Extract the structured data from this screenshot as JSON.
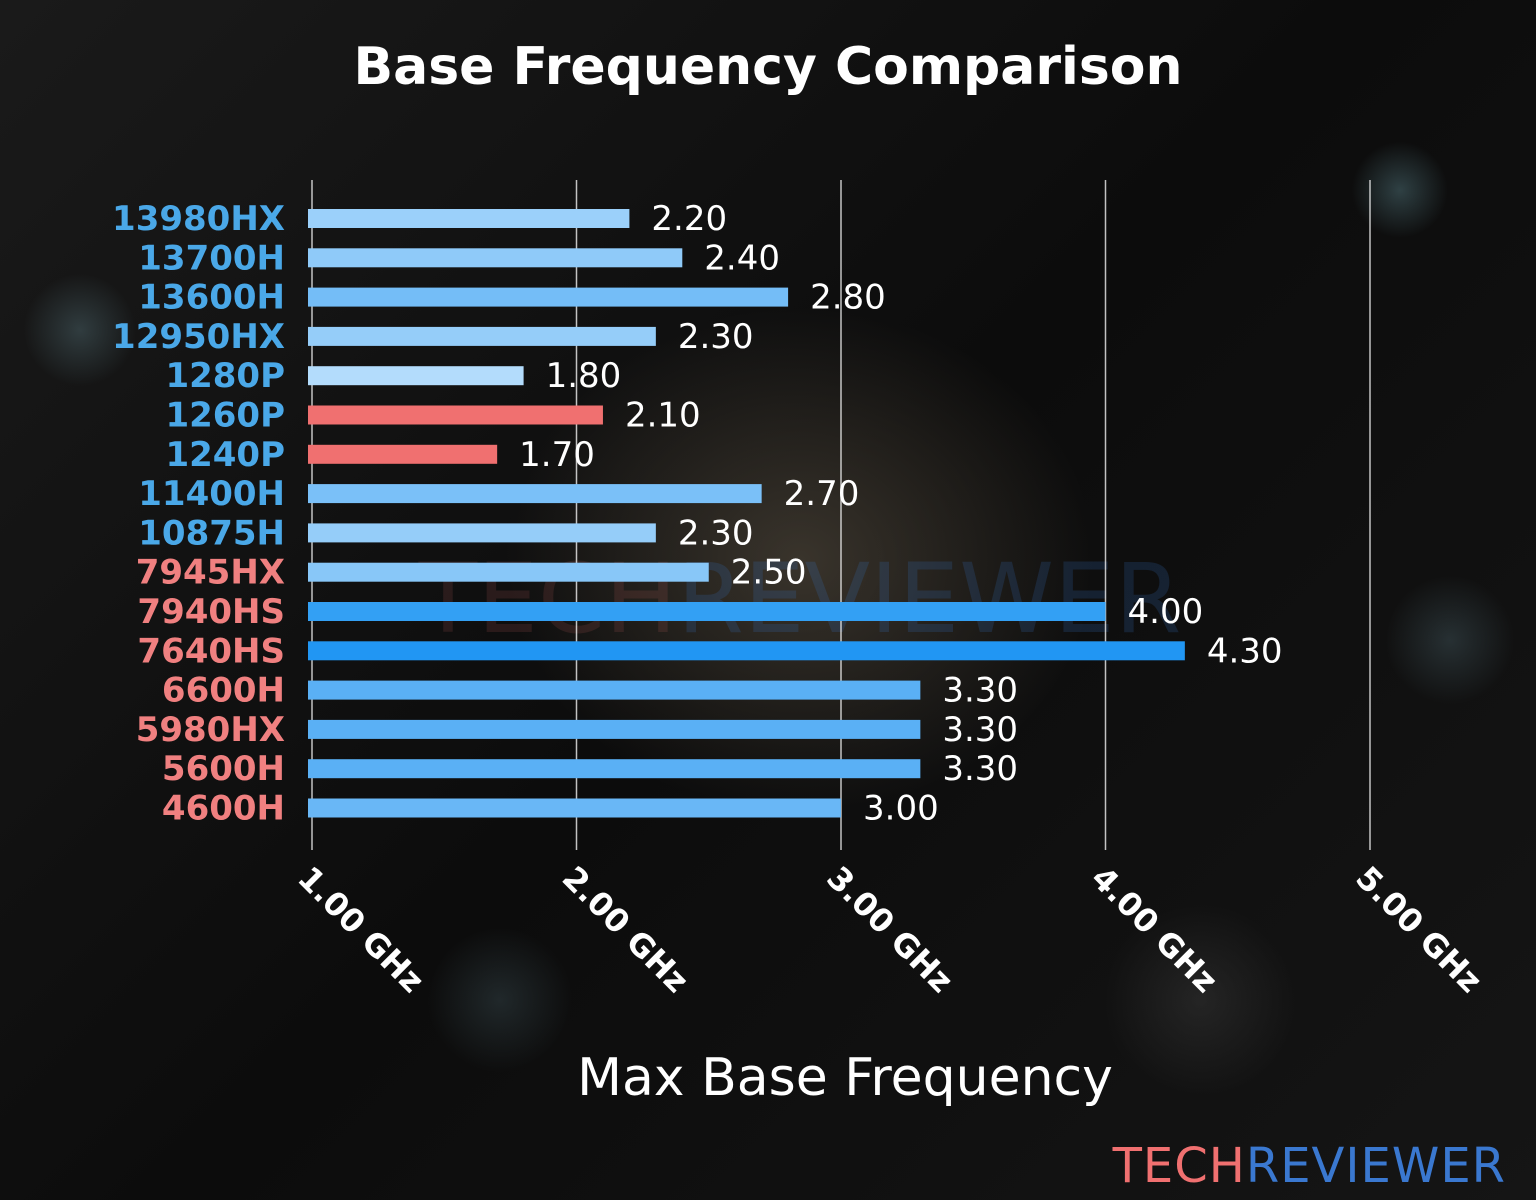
{
  "chart_data": {
    "type": "bar",
    "orientation": "horizontal",
    "title": "Base Frequency Comparison",
    "xlabel": "Max Base Frequency",
    "ylabel": "",
    "xlim": [
      1.0,
      5.0
    ],
    "xticks": [
      1,
      2,
      3,
      4,
      5
    ],
    "xtick_labels": [
      "1.00 GHz",
      "2.00 GHz",
      "3.00 GHz",
      "4.00 GHz",
      "5.00 GHz"
    ],
    "grid": "vertical",
    "categories": [
      "13980HX",
      "13700H",
      "13600H",
      "12950HX",
      "1280P",
      "1260P",
      "1240P",
      "11400H",
      "10875H",
      "7945HX",
      "7940HS",
      "7640HS",
      "6600H",
      "5980HX",
      "5600H",
      "4600H"
    ],
    "values": [
      2.2,
      2.4,
      2.8,
      2.3,
      1.8,
      2.1,
      1.7,
      2.7,
      2.3,
      2.5,
      4.0,
      4.3,
      3.3,
      3.3,
      3.3,
      3.0
    ],
    "value_labels": [
      "2.20",
      "2.40",
      "2.80",
      "2.30",
      "1.80",
      "2.10",
      "1.70",
      "2.70",
      "2.30",
      "2.50",
      "4.00",
      "4.30",
      "3.30",
      "3.30",
      "3.30",
      "3.00"
    ],
    "bar_colors": [
      "#9bd0fa",
      "#8fcaf9",
      "#74bdf7",
      "#95cdf9",
      "#b3dcfc",
      "#f07070",
      "#f07070",
      "#7ac0f8",
      "#95cdf9",
      "#88c7f8",
      "#33a0f4",
      "#2196f3",
      "#5ab0f5",
      "#5ab0f5",
      "#5ab0f5",
      "#69b7f6"
    ],
    "category_colors": [
      "#4aa8e8",
      "#4aa8e8",
      "#4aa8e8",
      "#4aa8e8",
      "#4aa8e8",
      "#4aa8e8",
      "#4aa8e8",
      "#4aa8e8",
      "#4aa8e8",
      "#f08080",
      "#f08080",
      "#f08080",
      "#f08080",
      "#f08080",
      "#f08080",
      "#f08080"
    ]
  },
  "logo": {
    "part1": "TECH",
    "part2": "REVIEWER",
    "color1": "#f07070",
    "color2": "#3a78d0"
  }
}
